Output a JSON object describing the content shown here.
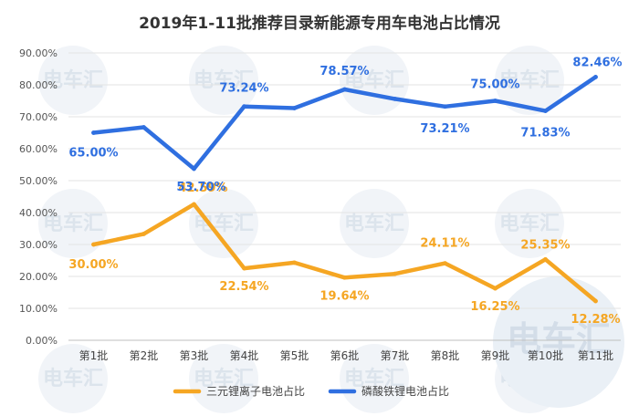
{
  "chart_data": {
    "type": "line",
    "title": "2019年1-11批推荐目录新能源专用车电池占比情况",
    "categories": [
      "第1批",
      "第2批",
      "第3批",
      "第4批",
      "第5批",
      "第6批",
      "第7批",
      "第8批",
      "第9批",
      "第10批",
      "第11批"
    ],
    "ylim": [
      0,
      90
    ],
    "yticks": [
      "0.00%",
      "10.00%",
      "20.00%",
      "30.00%",
      "40.00%",
      "50.00%",
      "60.00%",
      "70.00%",
      "80.00%",
      "90.00%"
    ],
    "grid": true,
    "legend_position": "bottom",
    "series": [
      {
        "name": "三元锂离子电池占比",
        "color": "#F5A623",
        "values": [
          30.0,
          33.3,
          42.59,
          22.54,
          24.3,
          19.64,
          20.8,
          24.11,
          16.25,
          25.35,
          12.28
        ],
        "data_labels": [
          "30.00%",
          "",
          "42.59%",
          "22.54%",
          "",
          "19.64%",
          "",
          "24.11%",
          "16.25%",
          "25.35%",
          "12.28%"
        ]
      },
      {
        "name": "磷酸铁锂电池占比",
        "color": "#2F6FE0",
        "values": [
          65.0,
          66.7,
          53.7,
          73.24,
          72.7,
          78.57,
          75.6,
          73.21,
          75.0,
          71.83,
          82.46
        ],
        "data_labels": [
          "65.00%",
          "",
          "53.70%",
          "73.24%",
          "",
          "78.57%",
          "",
          "73.21%",
          "75.00%",
          "71.83%",
          "82.46%"
        ]
      }
    ]
  },
  "watermark": {
    "text": "电车汇",
    "color": "#DCE4EC"
  }
}
